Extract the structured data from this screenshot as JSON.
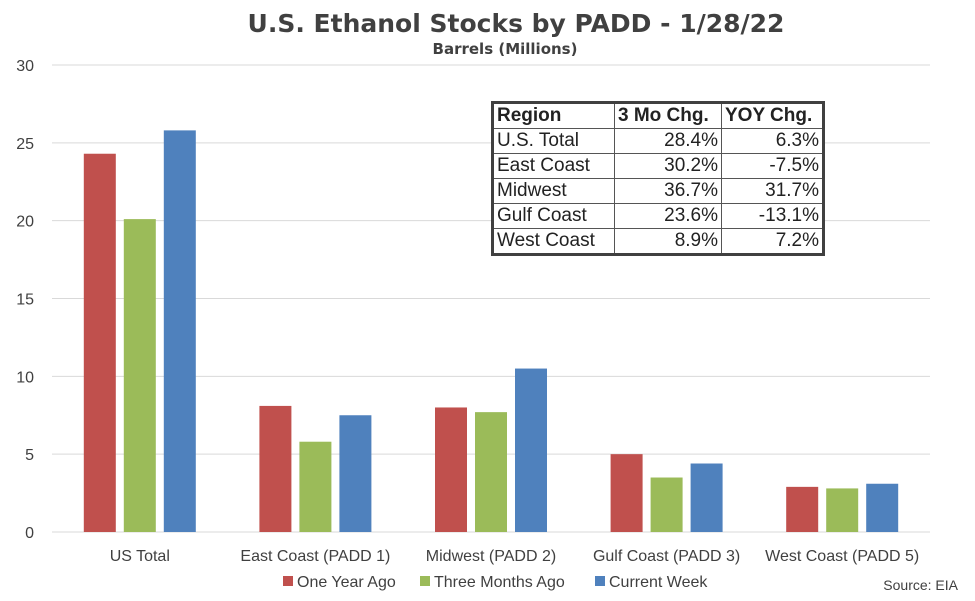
{
  "chart_data": {
    "type": "bar",
    "title": "U.S. Ethanol Stocks by PADD - 1/28/22",
    "subtitle": "Barrels (Millions)",
    "categories": [
      "US Total",
      "East Coast (PADD 1)",
      "Midwest (PADD 2)",
      "Gulf Coast (PADD 3)",
      "West Coast (PADD 5)"
    ],
    "series": [
      {
        "name": "One Year Ago",
        "color": "#c0504d",
        "values": [
          24.3,
          8.1,
          8.0,
          5.0,
          2.9
        ]
      },
      {
        "name": "Three Months Ago",
        "color": "#9bbb59",
        "values": [
          20.1,
          5.8,
          7.7,
          3.5,
          2.8
        ]
      },
      {
        "name": "Current Week",
        "color": "#4f81bd",
        "values": [
          25.8,
          7.5,
          10.5,
          4.4,
          3.1
        ]
      }
    ],
    "ylim": [
      0,
      30
    ],
    "yticks": [
      0,
      5,
      10,
      15,
      20,
      25,
      30
    ],
    "grid": true,
    "legend": "bottom",
    "source": "Source: EIA"
  },
  "table": {
    "headers": [
      "Region",
      "3 Mo Chg.",
      "YOY Chg."
    ],
    "rows": [
      [
        "U.S. Total",
        "28.4%",
        "6.3%"
      ],
      [
        "East Coast",
        "30.2%",
        "-7.5%"
      ],
      [
        "Midwest",
        "36.7%",
        "31.7%"
      ],
      [
        "Gulf Coast",
        "23.6%",
        "-13.1%"
      ],
      [
        "West Coast",
        "8.9%",
        "7.2%"
      ]
    ]
  }
}
